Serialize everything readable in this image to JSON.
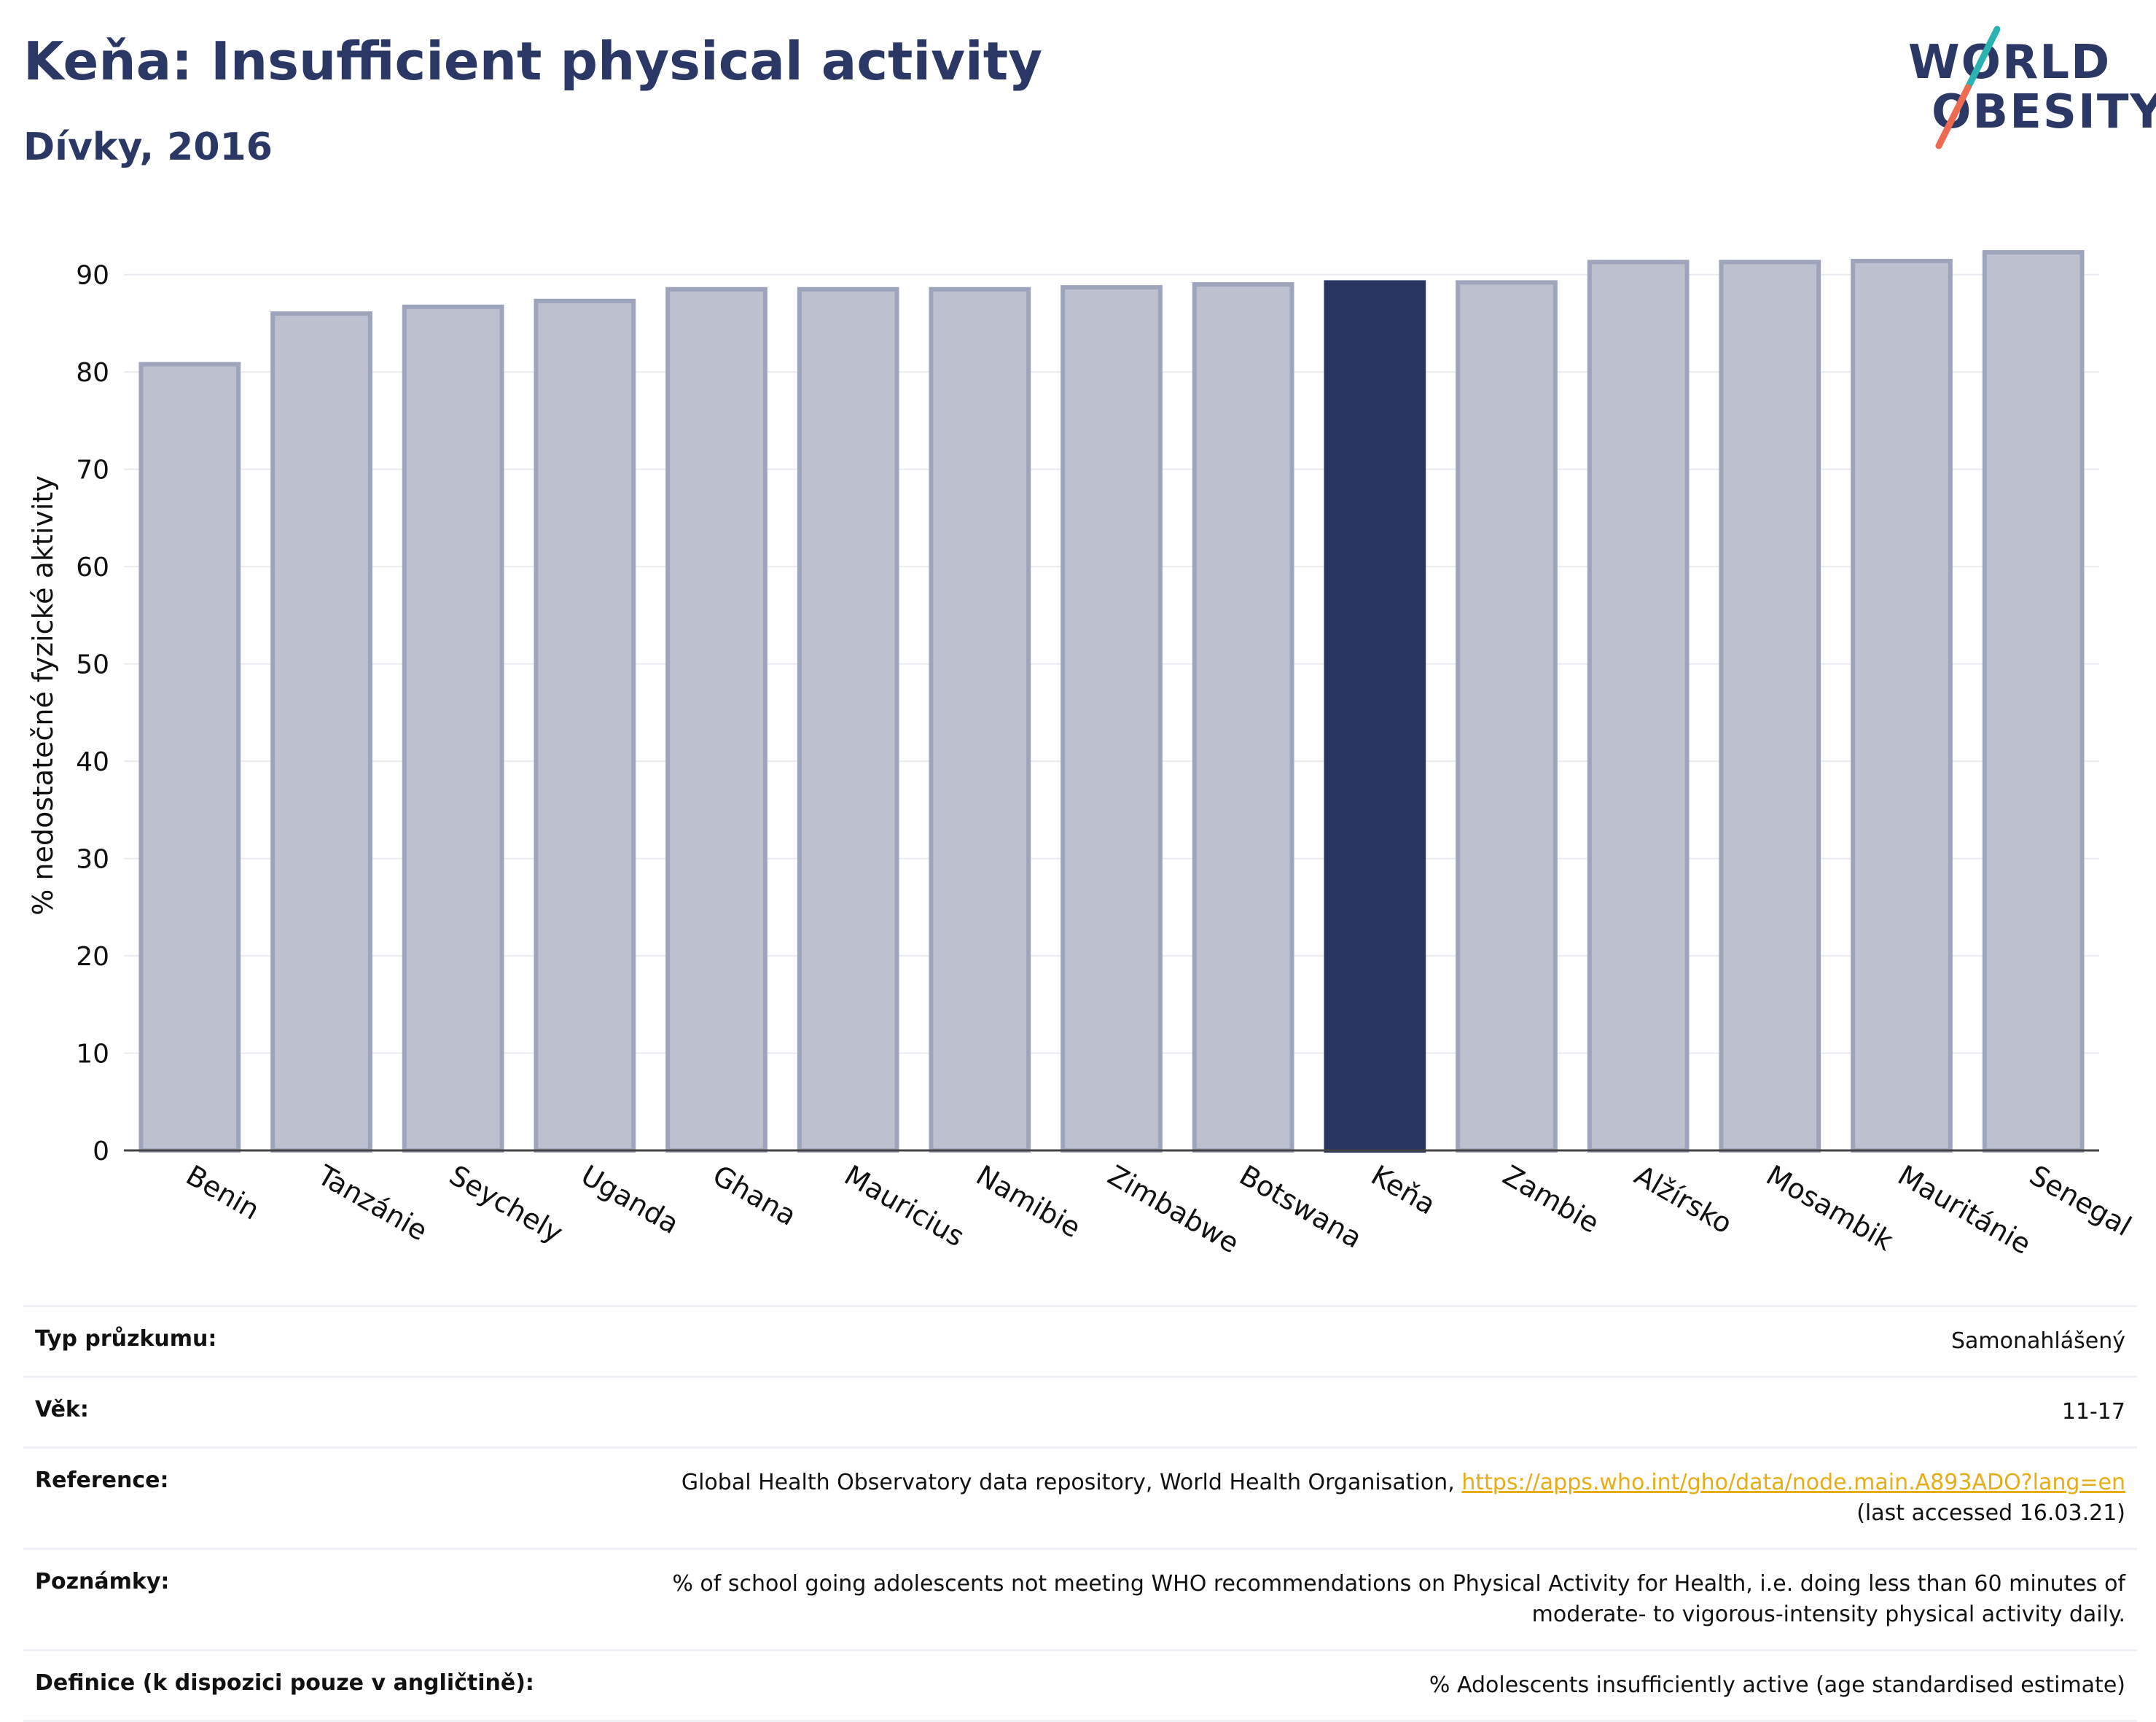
{
  "header": {
    "title": "Keňa: Insufficient physical activity",
    "subtitle": "Dívky, 2016"
  },
  "logo": {
    "line1": "WORLD",
    "line2": "OBESITY"
  },
  "chart_data": {
    "type": "bar",
    "categories": [
      "Benin",
      "Tanzánie",
      "Seychely",
      "Uganda",
      "Ghana",
      "Mauricius",
      "Namibie",
      "Zimbabwe",
      "Botswana",
      "Keňa",
      "Zambie",
      "Alžírsko",
      "Mosambik",
      "Mauritánie",
      "Senegal"
    ],
    "values": [
      80.8,
      86.0,
      86.7,
      87.3,
      88.5,
      88.5,
      88.5,
      88.7,
      89.0,
      89.2,
      89.2,
      91.3,
      91.3,
      91.4,
      92.3
    ],
    "highlight": "Keňa",
    "ylabel": "% nedostatečné fyzické aktivity",
    "xlabel": "",
    "ylim": [
      0,
      95
    ],
    "yticks": [
      0,
      10,
      20,
      30,
      40,
      50,
      60,
      70,
      80,
      90
    ],
    "grid": true,
    "colors": {
      "bar": "#bdc1cf",
      "bar_edge": "#9ea4bb",
      "highlight": "#283561"
    }
  },
  "info": {
    "survey_label": "Typ průzkumu:",
    "survey_value": "Samonahlášený",
    "age_label": "Věk:",
    "age_value": "11-17",
    "reference_label": "Reference:",
    "reference_text": "Global Health Observatory data repository, World Health Organisation, ",
    "reference_link": "https://apps.who.int/gho/data/node.main.A893ADO?lang=en",
    "reference_accessed": "(last accessed 16.03.21)",
    "notes_label": "Poznámky:",
    "notes_line1": "% of school going adolescents not meeting WHO recommendations on Physical Activity for Health, i.e. doing less than 60 minutes of",
    "notes_line2": "moderate- to vigorous-intensity physical activity daily.",
    "definition_label": "Definice (k dispozici pouze v angličtině):",
    "definition_value": "% Adolescents insufficiently active (age standardised estimate)"
  }
}
